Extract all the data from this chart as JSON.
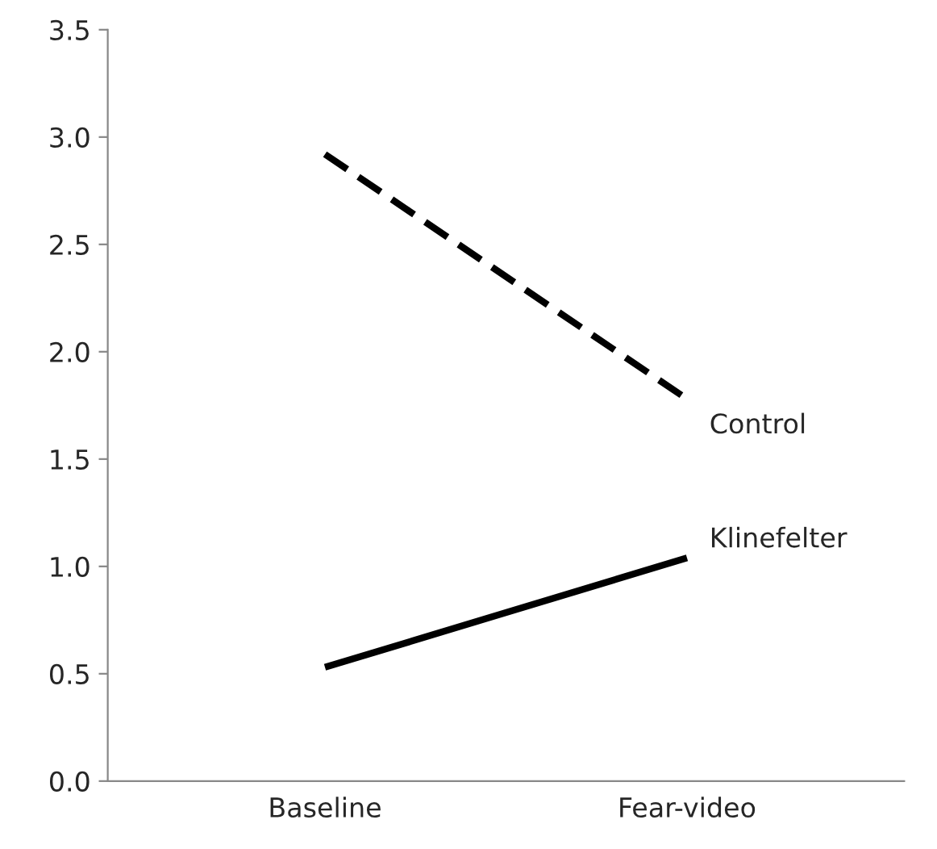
{
  "chart_data": {
    "type": "line",
    "categories": [
      "Baseline",
      "Fear-video"
    ],
    "series": [
      {
        "name": "Control",
        "color": "#000000",
        "values": [
          2.92,
          1.78
        ],
        "line_style": "dashed"
      },
      {
        "name": "Klinefelter",
        "color": "#000000",
        "values": [
          0.53,
          1.04
        ],
        "line_style": "solid"
      }
    ],
    "ylim": [
      0,
      3.5
    ],
    "yticks": [
      {
        "value": 0,
        "label": "0.0"
      },
      {
        "value": 0.5,
        "label": "0.5"
      },
      {
        "value": 1,
        "label": "1.0"
      },
      {
        "value": 1.5,
        "label": "1.5"
      },
      {
        "value": 2,
        "label": "2.0"
      },
      {
        "value": 2.5,
        "label": "2.5"
      },
      {
        "value": 3,
        "label": "3.0"
      },
      {
        "value": 3.5,
        "label": "3.5"
      }
    ],
    "grid": false,
    "legend": false,
    "marker": "none"
  }
}
